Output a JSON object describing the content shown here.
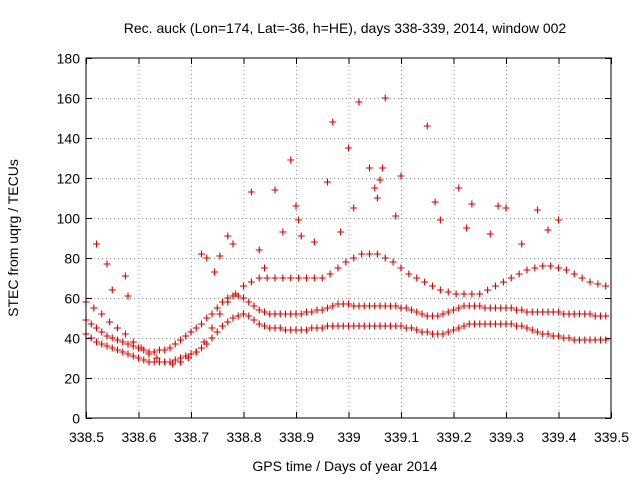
{
  "chart_data": {
    "type": "scatter",
    "title": "Rec. auck (Lon=174, Lat=-36, h=HE), days 338-339, 2014, window 002",
    "xlabel": "GPS time / Days of year 2014",
    "ylabel": "STEC from uqrg / TECUs",
    "xlim": [
      338.5,
      339.5
    ],
    "ylim": [
      0,
      180
    ],
    "xticks": [
      338.5,
      338.6,
      338.7,
      338.8,
      338.9,
      339.0,
      339.1,
      339.2,
      339.3,
      339.4,
      339.5
    ],
    "xtick_labels": [
      "338.5",
      "338.6",
      "338.7",
      "338.8",
      "338.9",
      "339",
      "339.1",
      "339.2",
      "339.3",
      "339.4",
      "339.5"
    ],
    "yticks": [
      0,
      20,
      40,
      60,
      80,
      100,
      120,
      140,
      160,
      180
    ],
    "ytick_labels": [
      "0",
      "20",
      "40",
      "60",
      "80",
      "100",
      "120",
      "140",
      "160",
      "180"
    ],
    "grid": true,
    "marker": "+",
    "marker_color": "#d40000",
    "series": [
      {
        "name": "STEC",
        "x": [
          338.5,
          338.51,
          338.52,
          338.53,
          338.54,
          338.55,
          338.56,
          338.57,
          338.58,
          338.59,
          338.6,
          338.61,
          338.62,
          338.63,
          338.64,
          338.65,
          338.66,
          338.67,
          338.68,
          338.69,
          338.7,
          338.71,
          338.72,
          338.73,
          338.74,
          338.75,
          338.76,
          338.77,
          338.78,
          338.79,
          338.8,
          338.81,
          338.82,
          338.83,
          338.84,
          338.85,
          338.86,
          338.87,
          338.88,
          338.89,
          338.9,
          338.91,
          338.92,
          338.93,
          338.94,
          338.95,
          338.96,
          338.97,
          338.98,
          338.99,
          339.0,
          339.01,
          339.02,
          339.03,
          339.04,
          339.05,
          339.06,
          339.07,
          339.08,
          339.09,
          339.1,
          339.11,
          339.12,
          339.13,
          339.14,
          339.15,
          339.16,
          339.17,
          339.18,
          339.19,
          339.2,
          339.21,
          339.22,
          339.23,
          339.24,
          339.25,
          339.26,
          339.27,
          339.28,
          339.29,
          339.3,
          339.31,
          339.32,
          339.33,
          339.34,
          339.35,
          339.36,
          339.37,
          339.38,
          339.39,
          339.4,
          339.41,
          339.42,
          339.43,
          339.44,
          339.45,
          339.46,
          339.47,
          339.48,
          339.49,
          338.5,
          338.51,
          338.52,
          338.53,
          338.54,
          338.55,
          338.56,
          338.57,
          338.58,
          338.59,
          338.6,
          338.61,
          338.62,
          338.63,
          338.64,
          338.65,
          338.66,
          338.67,
          338.68,
          338.69,
          338.7,
          338.71,
          338.72,
          338.73,
          338.74,
          338.75,
          338.76,
          338.77,
          338.78,
          338.79,
          338.8,
          338.81,
          338.82,
          338.83,
          338.84,
          338.85,
          338.86,
          338.87,
          338.88,
          338.89,
          338.9,
          338.91,
          338.92,
          338.93,
          338.94,
          338.95,
          338.96,
          338.97,
          338.98,
          338.99,
          339.0,
          339.01,
          339.02,
          339.03,
          339.04,
          339.05,
          339.06,
          339.07,
          339.08,
          339.09,
          339.1,
          339.11,
          339.12,
          339.13,
          339.14,
          339.15,
          339.16,
          339.17,
          339.18,
          339.19,
          339.2,
          339.21,
          339.22,
          339.23,
          339.24,
          339.25,
          339.26,
          339.27,
          339.28,
          339.29,
          339.3,
          339.31,
          339.32,
          339.33,
          339.34,
          339.35,
          339.36,
          339.37,
          339.38,
          339.39,
          339.4,
          339.41,
          339.42,
          339.43,
          339.44,
          339.45,
          339.46,
          339.47,
          339.48,
          339.49,
          338.5,
          338.515,
          338.53,
          338.545,
          338.56,
          338.575,
          338.59,
          338.605,
          338.62,
          338.635,
          338.65,
          338.665,
          338.68,
          338.695,
          338.71,
          338.725,
          338.74,
          338.755,
          338.77,
          338.785,
          338.8,
          338.815,
          338.83,
          338.845,
          338.86,
          338.875,
          338.89,
          338.905,
          338.92,
          338.935,
          338.95,
          338.965,
          338.98,
          338.995,
          339.01,
          339.025,
          339.04,
          339.055,
          339.07,
          339.085,
          339.1,
          339.115,
          339.13,
          339.145,
          339.16,
          339.175,
          339.19,
          339.205,
          339.22,
          339.235,
          339.25,
          339.265,
          339.28,
          339.295,
          339.31,
          339.325,
          339.34,
          339.355,
          339.37,
          339.385,
          339.4,
          339.415,
          339.43,
          339.445,
          339.46,
          339.475,
          339.49,
          338.52,
          338.54,
          338.55,
          338.575,
          338.58,
          338.72,
          338.73,
          338.745,
          338.755,
          338.77,
          338.78,
          338.815,
          338.83,
          338.84,
          338.86,
          338.875,
          338.89,
          338.9,
          338.905,
          338.91,
          338.935,
          338.96,
          338.97,
          338.985,
          339.0,
          339.01,
          339.02,
          339.04,
          339.05,
          339.055,
          339.06,
          339.065,
          339.07,
          339.09,
          339.1,
          339.15,
          339.165,
          339.175,
          339.21,
          339.225,
          339.235,
          339.27,
          339.285,
          339.3,
          339.33,
          339.36,
          339.38,
          339.4
        ],
        "y": [
          42,
          40,
          38,
          37,
          36,
          35,
          34,
          33,
          32,
          31,
          30,
          29,
          28,
          28,
          28,
          28,
          28,
          29,
          30,
          31,
          32,
          33,
          35,
          37,
          40,
          43,
          46,
          48,
          50,
          51,
          52,
          51,
          49,
          47,
          46,
          45,
          45,
          45,
          44,
          44,
          44,
          44,
          44,
          45,
          45,
          45,
          46,
          46,
          46,
          46,
          46,
          46,
          46,
          46,
          46,
          46,
          46,
          46,
          46,
          46,
          46,
          45,
          45,
          44,
          43,
          43,
          42,
          42,
          42,
          43,
          44,
          45,
          46,
          47,
          47,
          47,
          47,
          47,
          47,
          47,
          47,
          47,
          46,
          46,
          45,
          44,
          43,
          42,
          42,
          41,
          41,
          40,
          40,
          39,
          39,
          39,
          39,
          39,
          39,
          39,
          49,
          47,
          45,
          43,
          41,
          40,
          39,
          38,
          37,
          36,
          35,
          34,
          33,
          33,
          34,
          34,
          35,
          37,
          39,
          41,
          43,
          45,
          47,
          50,
          52,
          55,
          58,
          60,
          61,
          61,
          60,
          58,
          56,
          54,
          53,
          52,
          52,
          52,
          52,
          52,
          52,
          52,
          53,
          53,
          54,
          54,
          55,
          56,
          57,
          57,
          57,
          56,
          56,
          56,
          56,
          56,
          56,
          56,
          56,
          56,
          55,
          55,
          54,
          53,
          52,
          51,
          51,
          51,
          52,
          53,
          54,
          55,
          56,
          56,
          56,
          56,
          55,
          55,
          55,
          55,
          55,
          55,
          54,
          54,
          53,
          53,
          53,
          53,
          53,
          53,
          53,
          52,
          52,
          52,
          52,
          52,
          52,
          51,
          51,
          51,
          58,
          55,
          52,
          48,
          45,
          42,
          38,
          35,
          32,
          30,
          28,
          27,
          28,
          30,
          33,
          38,
          45,
          52,
          58,
          62,
          66,
          68,
          70,
          70,
          70,
          70,
          70,
          70,
          70,
          70,
          70,
          72,
          75,
          78,
          80,
          82,
          82,
          82,
          80,
          78,
          75,
          72,
          70,
          68,
          66,
          64,
          63,
          62,
          62,
          62,
          62,
          64,
          66,
          68,
          70,
          72,
          74,
          75,
          76,
          76,
          75,
          74,
          72,
          70,
          68,
          67,
          66,
          87,
          77,
          64,
          71,
          61,
          82,
          80,
          73,
          81,
          91,
          87,
          113,
          84,
          75,
          114,
          93,
          129,
          106,
          99,
          91,
          88,
          118,
          148,
          93,
          135,
          105,
          158,
          125,
          115,
          110,
          119,
          125,
          160,
          101,
          121,
          146,
          108,
          99,
          115,
          95,
          107,
          92,
          106,
          105,
          87,
          104,
          94,
          99
        ]
      }
    ]
  }
}
